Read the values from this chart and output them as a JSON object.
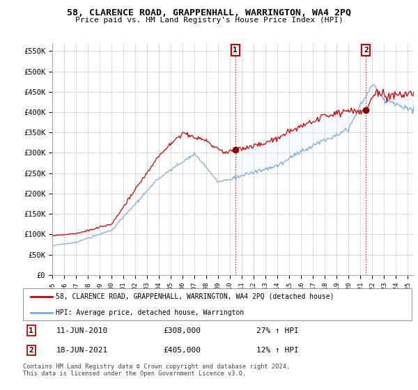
{
  "title": "58, CLARENCE ROAD, GRAPPENHALL, WARRINGTON, WA4 2PQ",
  "subtitle": "Price paid vs. HM Land Registry's House Price Index (HPI)",
  "ylim": [
    0,
    570000
  ],
  "yticks": [
    0,
    50000,
    100000,
    150000,
    200000,
    250000,
    300000,
    350000,
    400000,
    450000,
    500000,
    550000
  ],
  "ytick_labels": [
    "£0",
    "£50K",
    "£100K",
    "£150K",
    "£200K",
    "£250K",
    "£300K",
    "£350K",
    "£400K",
    "£450K",
    "£500K",
    "£550K"
  ],
  "line1_color": "#cc0000",
  "line2_color": "#7aaadd",
  "fill_color": "#ddeeff",
  "marker_color": "#880000",
  "legend1": "58, CLARENCE ROAD, GRAPPENHALL, WARRINGTON, WA4 2PQ (detached house)",
  "legend2": "HPI: Average price, detached house, Warrington",
  "sale1_date": "11-JUN-2010",
  "sale1_price": "£308,000",
  "sale1_hpi": "27% ↑ HPI",
  "sale2_date": "18-JUN-2021",
  "sale2_price": "£405,000",
  "sale2_hpi": "12% ↑ HPI",
  "footnote": "Contains HM Land Registry data © Crown copyright and database right 2024.\nThis data is licensed under the Open Government Licence v3.0.",
  "sale1_x": 2010.44,
  "sale2_x": 2021.46,
  "sale1_y": 308000,
  "sale2_y": 405000,
  "xmin": 1995,
  "xmax": 2025.5,
  "xtick_years": [
    1995,
    1996,
    1997,
    1998,
    1999,
    2000,
    2001,
    2002,
    2003,
    2004,
    2005,
    2006,
    2007,
    2008,
    2009,
    2010,
    2011,
    2012,
    2013,
    2014,
    2015,
    2016,
    2017,
    2018,
    2019,
    2020,
    2021,
    2022,
    2023,
    2024,
    2025
  ]
}
